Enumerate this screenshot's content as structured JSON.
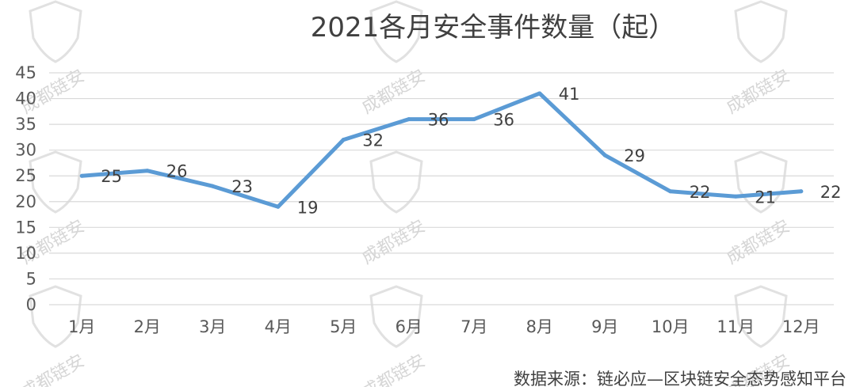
{
  "chart_data": {
    "type": "line",
    "title": "2021各月安全事件数量（起）",
    "categories": [
      "1月",
      "2月",
      "3月",
      "4月",
      "5月",
      "6月",
      "7月",
      "8月",
      "9月",
      "10月",
      "11月",
      "12月"
    ],
    "series": [
      {
        "values": [
          25,
          26,
          23,
          19,
          32,
          36,
          36,
          41,
          29,
          22,
          21,
          22
        ]
      }
    ],
    "y_ticks": [
      "0",
      "5",
      "10",
      "15",
      "20",
      "25",
      "30",
      "35",
      "40",
      "45"
    ],
    "ylim": [
      0,
      45
    ],
    "grid": true,
    "legend": "none",
    "data_labels": true,
    "line_color": "#5b9bd5"
  },
  "source_text": "数据来源：链必应—区块链安全态势感知平台",
  "watermark": {
    "text": "成都链安",
    "color": "#d6d6d6"
  }
}
